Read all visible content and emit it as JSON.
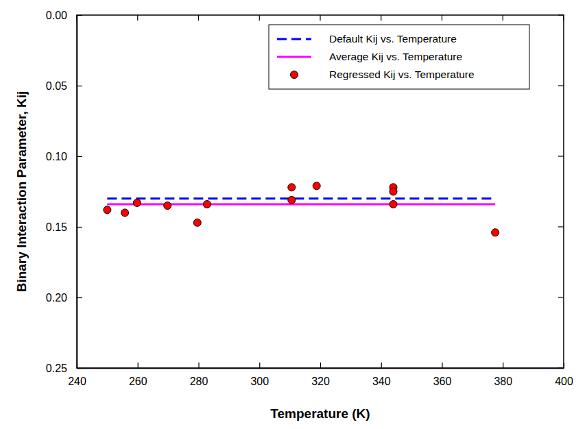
{
  "chart_data": {
    "type": "scatter",
    "x_label": "Temperature (K)",
    "y_label": "Binary Interaction Parameter, Kij",
    "xlim": [
      240,
      400
    ],
    "xticks": [
      240,
      260,
      280,
      300,
      320,
      340,
      360,
      380,
      400
    ],
    "ylim": [
      0,
      0.25
    ],
    "yticks": [
      {
        "value": 0,
        "label": "0.00"
      },
      {
        "value": 0.05,
        "label": "0.05"
      },
      {
        "value": 0.1,
        "label": "0.10"
      },
      {
        "value": 0.15,
        "label": "0.15"
      },
      {
        "value": 0.2,
        "label": "0.20"
      },
      {
        "value": 0.25,
        "label": "0.25"
      }
    ],
    "grid": false,
    "legend": "top-right",
    "series": [
      {
        "name": "Default Kij vs. Temperature",
        "type": "line",
        "color": "#0000ff",
        "line_style": "dashed",
        "x": [
          250,
          377.5
        ],
        "values": [
          0.13,
          0.13
        ]
      },
      {
        "name": "Average Kij vs. Temperature",
        "type": "line",
        "color": "#ff00ff",
        "line_style": "solid",
        "x": [
          250,
          377.5
        ],
        "values": [
          0.134,
          0.134
        ]
      },
      {
        "name": "Regressed Kij vs. Temperature",
        "type": "scatter",
        "color": "#ff0000",
        "marker": "circle",
        "x": [
          250,
          255.8,
          259.8,
          269.8,
          279.6,
          282.8,
          310.6,
          310.6,
          318.8,
          344,
          344,
          344,
          377.5
        ],
        "values": [
          0.138,
          0.14,
          0.133,
          0.135,
          0.147,
          0.134,
          0.122,
          0.131,
          0.121,
          0.122,
          0.125,
          0.134,
          0.154
        ]
      }
    ]
  }
}
